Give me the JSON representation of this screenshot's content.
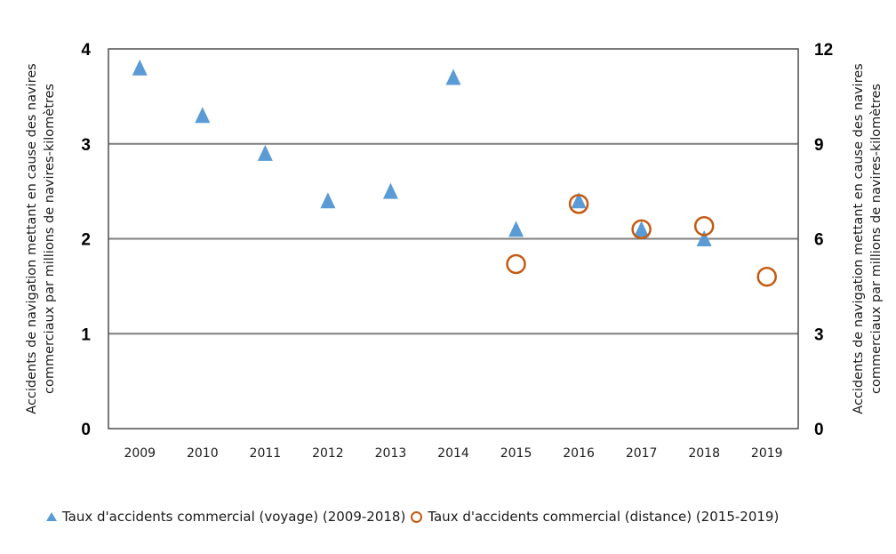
{
  "chart_data": {
    "type": "scatter",
    "title": "",
    "categories": [
      "2009",
      "2010",
      "2011",
      "2012",
      "2013",
      "2014",
      "2015",
      "2016",
      "2017",
      "2018",
      "2019"
    ],
    "ylabel_left": "Accidents de navigation mettant en cause des navires commerciaux par millions de navires-kilomètres",
    "ylabel_left_lines": [
      "Accidents de navigation mettant en cause des navires",
      "commerciaux par millions de navires-kilomètres"
    ],
    "ylabel_right": "Accidents de navigation mettant en cause des navires commerciaux par millions de navires-kilomètres",
    "ylabel_right_lines": [
      "Accidents de navigation mettant en cause des navires",
      "commerciaux par millions de navires-kilomètres"
    ],
    "xlabel": "",
    "ylim_left": [
      0,
      4
    ],
    "ylim_right": [
      0,
      12
    ],
    "yticks_left": [
      "0",
      "1",
      "2",
      "3",
      "4"
    ],
    "yticks_right": [
      "0",
      "3",
      "6",
      "9",
      "12"
    ],
    "grid": true,
    "legend_position": "bottom",
    "series": [
      {
        "name": "Taux d'accidents commercial (voyage) (2009-2018)",
        "axis": "left",
        "marker": "triangle",
        "color": "#5B9BD5",
        "x": [
          "2009",
          "2010",
          "2011",
          "2012",
          "2013",
          "2014",
          "2015",
          "2016",
          "2017",
          "2018"
        ],
        "values": [
          3.8,
          3.3,
          2.9,
          2.4,
          2.5,
          3.7,
          2.1,
          2.4,
          2.1,
          2.0
        ]
      },
      {
        "name": "Taux d'accidents commercial (distance) (2015-2019)",
        "axis": "right",
        "marker": "circle-open",
        "color": "#C55A11",
        "x": [
          "2015",
          "2016",
          "2017",
          "2018",
          "2019"
        ],
        "values": [
          5.2,
          7.1,
          6.3,
          6.4,
          4.8
        ]
      }
    ]
  }
}
